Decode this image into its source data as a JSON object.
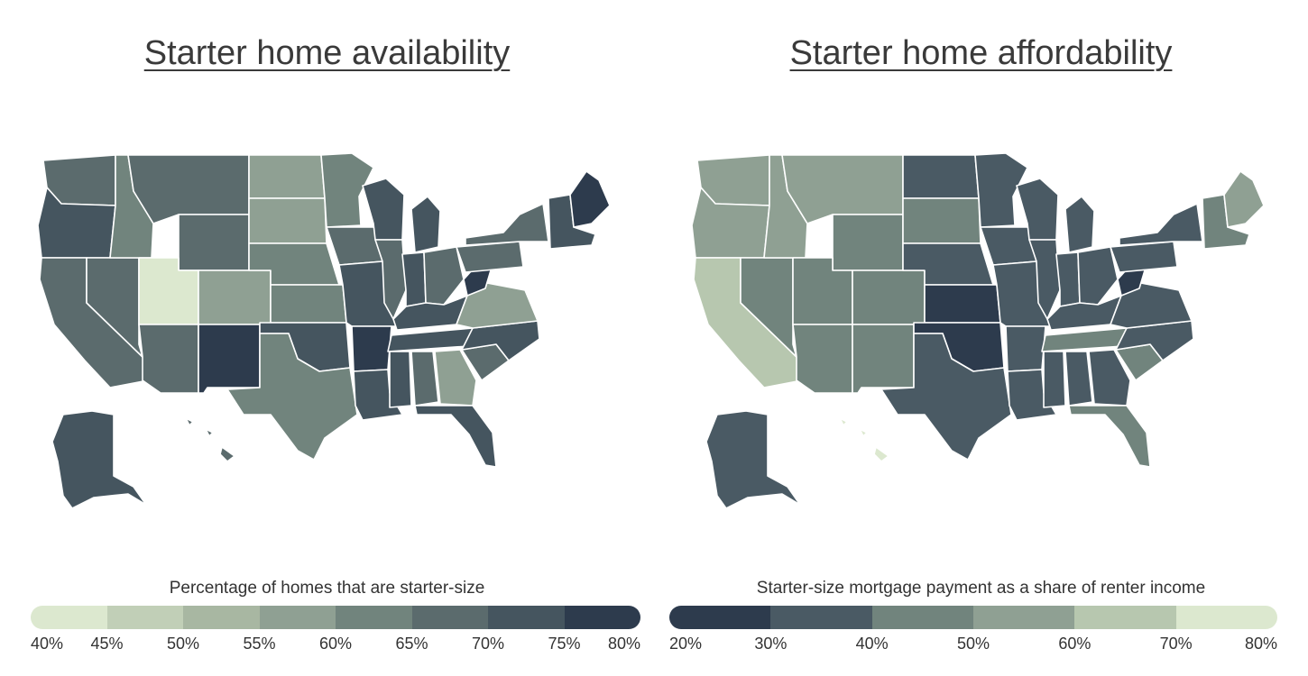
{
  "left": {
    "title": "Starter home availability",
    "legend_label": "Percentage of homes that are starter-size",
    "colors": [
      "#dce8cf",
      "#c1cfb7",
      "#a8b7a2",
      "#8fa093",
      "#71847d",
      "#5b6b6d",
      "#45555f",
      "#2d3b4d"
    ],
    "ticks": [
      "40%",
      "45%",
      "50%",
      "55%",
      "60%",
      "65%",
      "70%",
      "75%",
      "80%"
    ],
    "tick_fractions": [
      0,
      0.125,
      0.25,
      0.375,
      0.5,
      0.625,
      0.75,
      0.875,
      1
    ],
    "states": {
      "WA": 5,
      "OR": 6,
      "CA": 5,
      "NV": 5,
      "ID": 4,
      "MT": 5,
      "WY": 5,
      "UT": 0,
      "AZ": 5,
      "CO": 3,
      "NM": 7,
      "ND": 3,
      "SD": 3,
      "NE": 4,
      "KS": 4,
      "OK": 6,
      "TX": 4,
      "MN": 4,
      "IA": 5,
      "MO": 6,
      "AR": 7,
      "LA": 6,
      "WI": 6,
      "IL": 5,
      "MI": 6,
      "IN": 6,
      "OH": 5,
      "KY": 6,
      "TN": 6,
      "MS": 6,
      "AL": 5,
      "GA": 3,
      "FL": 6,
      "SC": 5,
      "NC": 6,
      "VA": 3,
      "WV": 7,
      "PA": 5,
      "NY": 5,
      "NE_REGION": 6,
      "ME": 7,
      "AK": 6,
      "HI": 5
    }
  },
  "right": {
    "title": "Starter home affordability",
    "legend_label": "Starter-size mortgage payment as a share of renter income",
    "colors": [
      "#2d3b4d",
      "#4a5a64",
      "#71847d",
      "#8fa093",
      "#b7c7af",
      "#dce8cf"
    ],
    "ticks": [
      "20%",
      "30%",
      "40%",
      "50%",
      "60%",
      "70%",
      "80%"
    ],
    "tick_fractions": [
      0,
      0.1667,
      0.3333,
      0.5,
      0.6667,
      0.8333,
      1
    ],
    "states": {
      "WA": 3,
      "OR": 3,
      "CA": 4,
      "NV": 2,
      "ID": 3,
      "MT": 3,
      "WY": 2,
      "UT": 2,
      "AZ": 2,
      "CO": 2,
      "NM": 2,
      "ND": 1,
      "SD": 2,
      "NE": 1,
      "KS": 0,
      "OK": 0,
      "TX": 1,
      "MN": 1,
      "IA": 1,
      "MO": 1,
      "AR": 1,
      "LA": 1,
      "WI": 1,
      "IL": 1,
      "MI": 1,
      "IN": 1,
      "OH": 1,
      "KY": 1,
      "TN": 2,
      "MS": 1,
      "AL": 1,
      "GA": 1,
      "FL": 2,
      "SC": 2,
      "NC": 1,
      "VA": 1,
      "WV": 0,
      "PA": 1,
      "NY": 1,
      "NE_REGION": 2,
      "ME": 3,
      "AK": 1,
      "HI": 5
    }
  }
}
